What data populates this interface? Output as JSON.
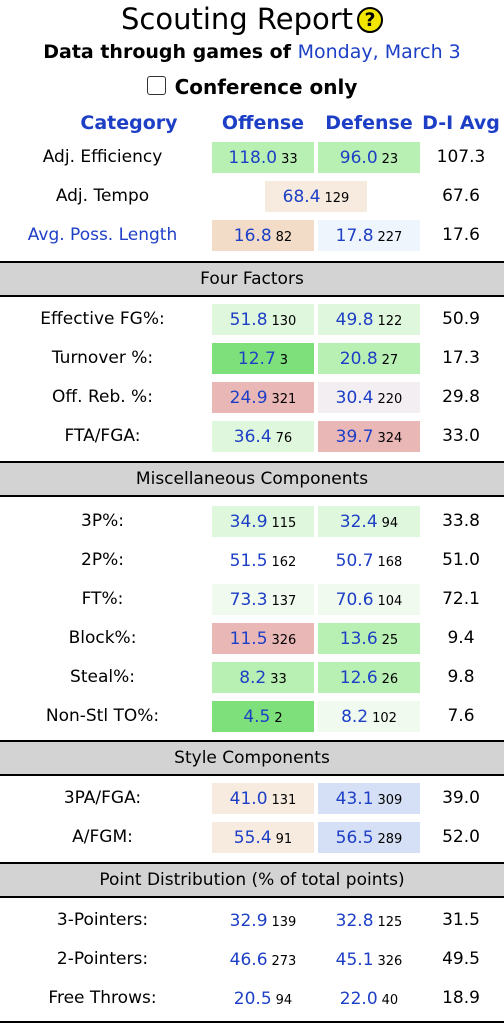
{
  "title": "Scouting Report",
  "help_icon_glyph": "?",
  "subtitle": {
    "prefix": "Data through games of",
    "date": "Monday, March 3"
  },
  "filter": {
    "label": "Conference only",
    "checked": false
  },
  "headers": {
    "category": "Category",
    "offense": "Offense",
    "defense": "Defense",
    "avg": "D-I Avg"
  },
  "colors": {
    "link": "#1d3fc6",
    "good_strong": "#7ee07a",
    "good": "#b8efb2",
    "good_light": "#dff7dc",
    "neutral_warm": "#f7ebe0",
    "neutral_cool": "#eef5fd",
    "bad_light": "#f2dcc8",
    "bad": "#eab7b7",
    "cool": "#d5dff6"
  },
  "rows": [
    {
      "label": "Adj. Efficiency",
      "off": "118.0",
      "off_rank": "33",
      "def": "96.0",
      "def_rank": "23",
      "avg": "107.3"
    },
    {
      "label": "Adj. Tempo",
      "tempo": "68.4",
      "tempo_rank": "129",
      "avg": "67.6"
    },
    {
      "label": "Avg. Poss. Length",
      "off": "16.8",
      "off_rank": "82",
      "def": "17.8",
      "def_rank": "227",
      "avg": "17.6"
    }
  ],
  "sections": [
    {
      "title": "Four Factors",
      "rows": [
        {
          "label": "Effective FG%:",
          "off": "51.8",
          "off_rank": "130",
          "def": "49.8",
          "def_rank": "122",
          "avg": "50.9"
        },
        {
          "label": "Turnover %:",
          "off": "12.7",
          "off_rank": "3",
          "def": "20.8",
          "def_rank": "27",
          "avg": "17.3"
        },
        {
          "label": "Off. Reb. %:",
          "off": "24.9",
          "off_rank": "321",
          "def": "30.4",
          "def_rank": "220",
          "avg": "29.8"
        },
        {
          "label": "FTA/FGA:",
          "off": "36.4",
          "off_rank": "76",
          "def": "39.7",
          "def_rank": "324",
          "avg": "33.0"
        }
      ]
    },
    {
      "title": "Miscellaneous Components",
      "rows": [
        {
          "label": "3P%:",
          "off": "34.9",
          "off_rank": "115",
          "def": "32.4",
          "def_rank": "94",
          "avg": "33.8"
        },
        {
          "label": "2P%:",
          "off": "51.5",
          "off_rank": "162",
          "def": "50.7",
          "def_rank": "168",
          "avg": "51.0"
        },
        {
          "label": "FT%:",
          "off": "73.3",
          "off_rank": "137",
          "def": "70.6",
          "def_rank": "104",
          "avg": "72.1"
        },
        {
          "label": "Block%:",
          "off": "11.5",
          "off_rank": "326",
          "def": "13.6",
          "def_rank": "25",
          "avg": "9.4"
        },
        {
          "label": "Steal%:",
          "off": "8.2",
          "off_rank": "33",
          "def": "12.6",
          "def_rank": "26",
          "avg": "9.8"
        },
        {
          "label": "Non-Stl TO%:",
          "off": "4.5",
          "off_rank": "2",
          "def": "8.2",
          "def_rank": "102",
          "avg": "7.6"
        }
      ]
    },
    {
      "title": "Style Components",
      "rows": [
        {
          "label": "3PA/FGA:",
          "off": "41.0",
          "off_rank": "131",
          "def": "43.1",
          "def_rank": "309",
          "avg": "39.0"
        },
        {
          "label": "A/FGM:",
          "off": "55.4",
          "off_rank": "91",
          "def": "56.5",
          "def_rank": "289",
          "avg": "52.0"
        }
      ]
    },
    {
      "title": "Point Distribution (% of total points)",
      "rows": [
        {
          "label": "3-Pointers:",
          "off": "32.9",
          "off_rank": "139",
          "def": "32.8",
          "def_rank": "125",
          "avg": "31.5"
        },
        {
          "label": "2-Pointers:",
          "off": "46.6",
          "off_rank": "273",
          "def": "45.1",
          "def_rank": "326",
          "avg": "49.5"
        },
        {
          "label": "Free Throws:",
          "off": "20.5",
          "off_rank": "94",
          "def": "22.0",
          "def_rank": "40",
          "avg": "18.9"
        }
      ]
    }
  ]
}
